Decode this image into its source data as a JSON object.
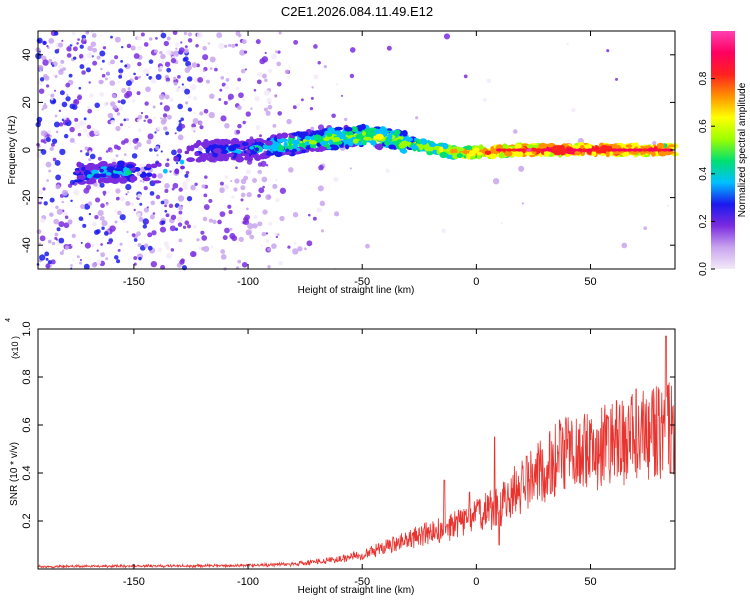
{
  "title": "C2E1.2026.084.11.49.E12",
  "chart_data": [
    {
      "type": "heatmap",
      "xlabel": "Height of straight line (km)",
      "ylabel": "Frequency (Hz)",
      "xlim": [
        -192,
        87
      ],
      "ylim": [
        -50,
        50
      ],
      "x_ticks": [
        -150,
        -100,
        -50,
        0,
        50
      ],
      "x_tick_labels": [
        "-150",
        "-100",
        "-50",
        "0",
        "50"
      ],
      "y_ticks": [
        -40,
        -20,
        0,
        20,
        40
      ],
      "y_tick_labels": [
        "-40",
        "-20",
        "0",
        "20",
        "40"
      ],
      "colorbar": {
        "label": "Normalized spectral amplitude",
        "range": [
          0,
          1
        ],
        "ticks": [
          0.0,
          0.2,
          0.4,
          0.6,
          0.8
        ],
        "tick_labels": [
          "0.0",
          "0.2",
          "0.4",
          "0.6",
          "0.8"
        ],
        "colors": [
          "#f3eaf8",
          "#c9a4ee",
          "#7a2be0",
          "#1a1aee",
          "#00c0ff",
          "#00e070",
          "#9cff00",
          "#ffff00",
          "#ff9000",
          "#ff2020",
          "#ff0060",
          "#ff40b0"
        ]
      },
      "ridge": {
        "x": [
          -170,
          -160,
          -140,
          -120,
          -100,
          -85,
          -70,
          -60,
          -50,
          -40,
          -30,
          -20,
          -10,
          0,
          20,
          40,
          60,
          87
        ],
        "freq": [
          -10,
          -9,
          -10,
          0,
          0,
          2,
          4,
          5,
          6,
          5,
          3,
          1,
          -1,
          -1,
          0,
          0,
          0,
          0
        ],
        "amplitude": [
          0.35,
          0.35,
          0.35,
          0.25,
          0.35,
          0.45,
          0.5,
          0.5,
          0.55,
          0.55,
          0.55,
          0.6,
          0.7,
          0.75,
          0.85,
          0.9,
          0.9,
          0.8
        ]
      }
    },
    {
      "type": "line",
      "xlabel": "Height of straight line (km)",
      "ylabel": "SNR (10 * v/v)",
      "y_multiplier": "(x10 )",
      "y_multiplier_exp": "4",
      "xlim": [
        -192,
        87
      ],
      "ylim": [
        0,
        1.0
      ],
      "x_ticks": [
        -150,
        -100,
        -50,
        0,
        50
      ],
      "x_tick_labels": [
        "-150",
        "-100",
        "-50",
        "0",
        "50"
      ],
      "y_ticks": [
        0.2,
        0.4,
        0.6,
        0.8,
        1.0
      ],
      "y_tick_labels": [
        "0.2",
        "0.4",
        "0.6",
        "0.8",
        "1.0"
      ],
      "series": [
        {
          "name": "SNR",
          "color": "#e8332e",
          "trend_x": [
            -192,
            -150,
            -100,
            -80,
            -60,
            -50,
            -40,
            -30,
            -20,
            -10,
            0,
            10,
            20,
            30,
            40,
            50,
            60,
            70,
            80,
            87
          ],
          "trend_y": [
            0.01,
            0.012,
            0.015,
            0.02,
            0.04,
            0.06,
            0.09,
            0.12,
            0.15,
            0.18,
            0.22,
            0.26,
            0.35,
            0.42,
            0.48,
            0.5,
            0.52,
            0.55,
            0.57,
            0.6
          ],
          "spikes": [
            {
              "x": -14,
              "y": 0.37
            },
            {
              "x": -3,
              "y": 0.32
            },
            {
              "x": 8,
              "y": 0.55
            },
            {
              "x": 10,
              "y": 0.1
            },
            {
              "x": 22,
              "y": 0.47
            },
            {
              "x": 70,
              "y": 0.75
            },
            {
              "x": 83,
              "y": 0.97
            },
            {
              "x": 85,
              "y": 0.4
            }
          ]
        }
      ]
    }
  ]
}
